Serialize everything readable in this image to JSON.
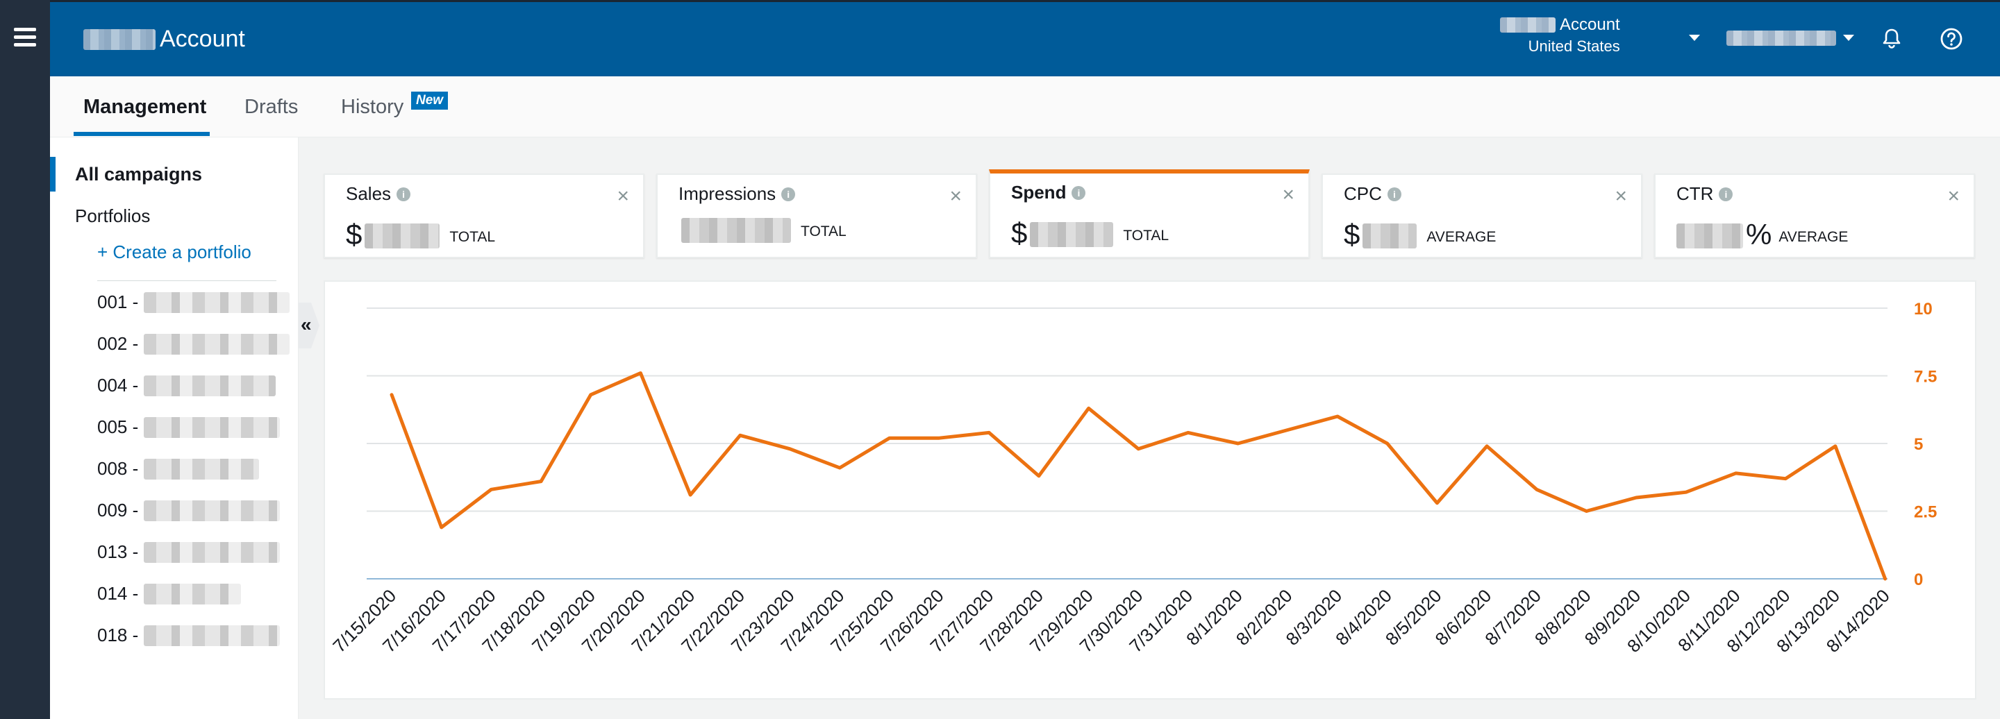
{
  "header": {
    "brand_title": "Account",
    "account_label": "Account",
    "account_region": "United States"
  },
  "tabs": [
    {
      "label": "Management",
      "active": true
    },
    {
      "label": "Drafts",
      "active": false
    },
    {
      "label": "History",
      "active": false,
      "badge": "New"
    }
  ],
  "sidebar": {
    "all_campaigns": "All campaigns",
    "portfolios": "Portfolios",
    "create_portfolio": "+ Create a portfolio",
    "collapse_label": "«",
    "items": [
      {
        "code": "001 -"
      },
      {
        "code": "002 -"
      },
      {
        "code": "004 -"
      },
      {
        "code": "005 -"
      },
      {
        "code": "008 -"
      },
      {
        "code": "009 -"
      },
      {
        "code": "013 -"
      },
      {
        "code": "014 -"
      },
      {
        "code": "018 -"
      }
    ]
  },
  "metrics": [
    {
      "name": "Sales",
      "currency": "$",
      "suffix": "",
      "kind": "TOTAL",
      "selected": false
    },
    {
      "name": "Impressions",
      "currency": "",
      "suffix": "",
      "kind": "TOTAL",
      "selected": false
    },
    {
      "name": "Spend",
      "currency": "$",
      "suffix": "",
      "kind": "TOTAL",
      "selected": true
    },
    {
      "name": "CPC",
      "currency": "$",
      "suffix": "",
      "kind": "AVERAGE",
      "selected": false
    },
    {
      "name": "CTR",
      "currency": "",
      "suffix": "%",
      "kind": "AVERAGE",
      "selected": false
    }
  ],
  "colors": {
    "accent": "#ec7211",
    "header": "#005b99",
    "link": "#0073bb"
  },
  "chart_data": {
    "type": "line",
    "series": [
      {
        "values": [
          6.8,
          1.9,
          3.3,
          3.6,
          6.8,
          7.6,
          3.1,
          5.3,
          4.8,
          4.1,
          5.2,
          5.2,
          5.4,
          3.8,
          6.3,
          4.8,
          5.4,
          5.0,
          5.5,
          6.0,
          5.0,
          2.8,
          4.9,
          3.3,
          2.5,
          3.0,
          3.2,
          3.9,
          3.7,
          4.9,
          0.0
        ],
        "color": "#ec7211"
      }
    ],
    "x": [
      "7/15/2020",
      "7/16/2020",
      "7/17/2020",
      "7/18/2020",
      "7/19/2020",
      "7/20/2020",
      "7/21/2020",
      "7/22/2020",
      "7/23/2020",
      "7/24/2020",
      "7/25/2020",
      "7/26/2020",
      "7/27/2020",
      "7/28/2020",
      "7/29/2020",
      "7/30/2020",
      "7/31/2020",
      "8/1/2020",
      "8/2/2020",
      "8/3/2020",
      "8/4/2020",
      "8/5/2020",
      "8/6/2020",
      "8/7/2020",
      "8/8/2020",
      "8/9/2020",
      "8/10/2020",
      "8/11/2020",
      "8/12/2020",
      "8/13/2020",
      "8/14/2020"
    ],
    "y_ticks": [
      "0",
      "2.5",
      "5",
      "7.5",
      "10"
    ],
    "ylim": [
      0,
      10
    ],
    "y_axis_side": "right",
    "grid": true
  }
}
